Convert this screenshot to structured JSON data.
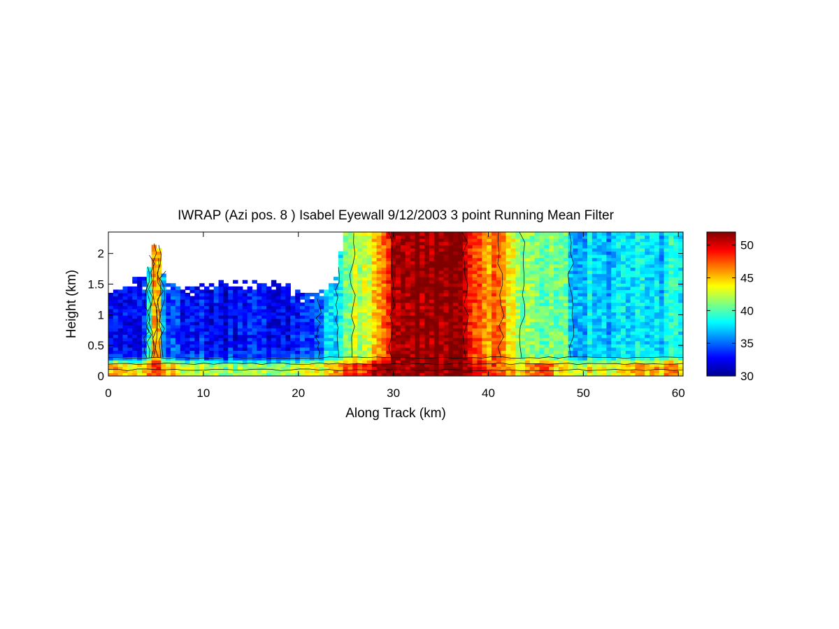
{
  "chart_data": {
    "type": "heatmap",
    "title": "IWRAP (Azi pos. 8 ) Isabel Eyewall 9/12/2003 3 point Running Mean Filter",
    "xlabel": "Along Track (km)",
    "ylabel": "Height (km)",
    "xlim": [
      0,
      60.5
    ],
    "ylim": [
      0,
      2.35
    ],
    "xticks": [
      "0",
      "10",
      "20",
      "30",
      "40",
      "50",
      "60"
    ],
    "yticks": [
      "0",
      "0.5",
      "1",
      "1.5",
      "2"
    ],
    "colorbar": {
      "colormap": "jet",
      "range": [
        30,
        52
      ],
      "ticks": [
        "30",
        "35",
        "40",
        "45",
        "50"
      ]
    },
    "contour_lines": true,
    "along_track_profile_km": [
      0,
      2,
      4,
      5,
      6,
      8,
      10,
      12,
      14,
      16,
      18,
      20,
      22,
      23,
      24,
      25,
      26,
      27,
      28,
      29,
      30,
      31,
      33,
      35,
      37,
      38,
      39,
      40,
      41,
      42,
      43,
      44,
      45,
      46,
      47,
      48,
      49,
      50,
      51,
      52,
      53,
      54,
      55,
      56,
      57,
      58,
      59,
      60
    ],
    "upper_layer_reflectivity": [
      33,
      33,
      33,
      50,
      34,
      33,
      33,
      32.5,
      33,
      32.5,
      32.5,
      33,
      33.5,
      38,
      37,
      41,
      42.5,
      42.5,
      44,
      46,
      51,
      52,
      52,
      52,
      51.5,
      49,
      48,
      46.5,
      47,
      44,
      43,
      41,
      42,
      39,
      41,
      40,
      37,
      37,
      38,
      36,
      37,
      37.5,
      36,
      38,
      36.5,
      37,
      38,
      39
    ],
    "upper_echo_top_km": [
      1.3,
      1.5,
      1.55,
      2.35,
      1.5,
      1.45,
      1.45,
      1.5,
      1.5,
      1.45,
      1.5,
      1.35,
      1.25,
      1.4,
      1.6,
      2.3,
      2.35,
      2.35,
      2.35,
      2.35,
      2.35,
      2.35,
      2.35,
      2.35,
      2.35,
      2.35,
      2.35,
      2.35,
      2.35,
      2.35,
      2.35,
      2.35,
      2.35,
      2.35,
      2.35,
      2.35,
      2.35,
      2.35,
      2.35,
      2.35,
      2.35,
      2.35,
      2.35,
      2.35,
      2.35,
      2.35,
      2.35,
      2.35
    ],
    "surface_layer_reflectivity": [
      46,
      45,
      44,
      50,
      45,
      43,
      42,
      41,
      42,
      41,
      41,
      42,
      43,
      44,
      46,
      48,
      48.5,
      48,
      50,
      51,
      52,
      52,
      52,
      52,
      52,
      51,
      50,
      48,
      47,
      46,
      45,
      45,
      48,
      47,
      45,
      44,
      43,
      43,
      44,
      42,
      43,
      44,
      44,
      45,
      44,
      45,
      46,
      46
    ]
  }
}
